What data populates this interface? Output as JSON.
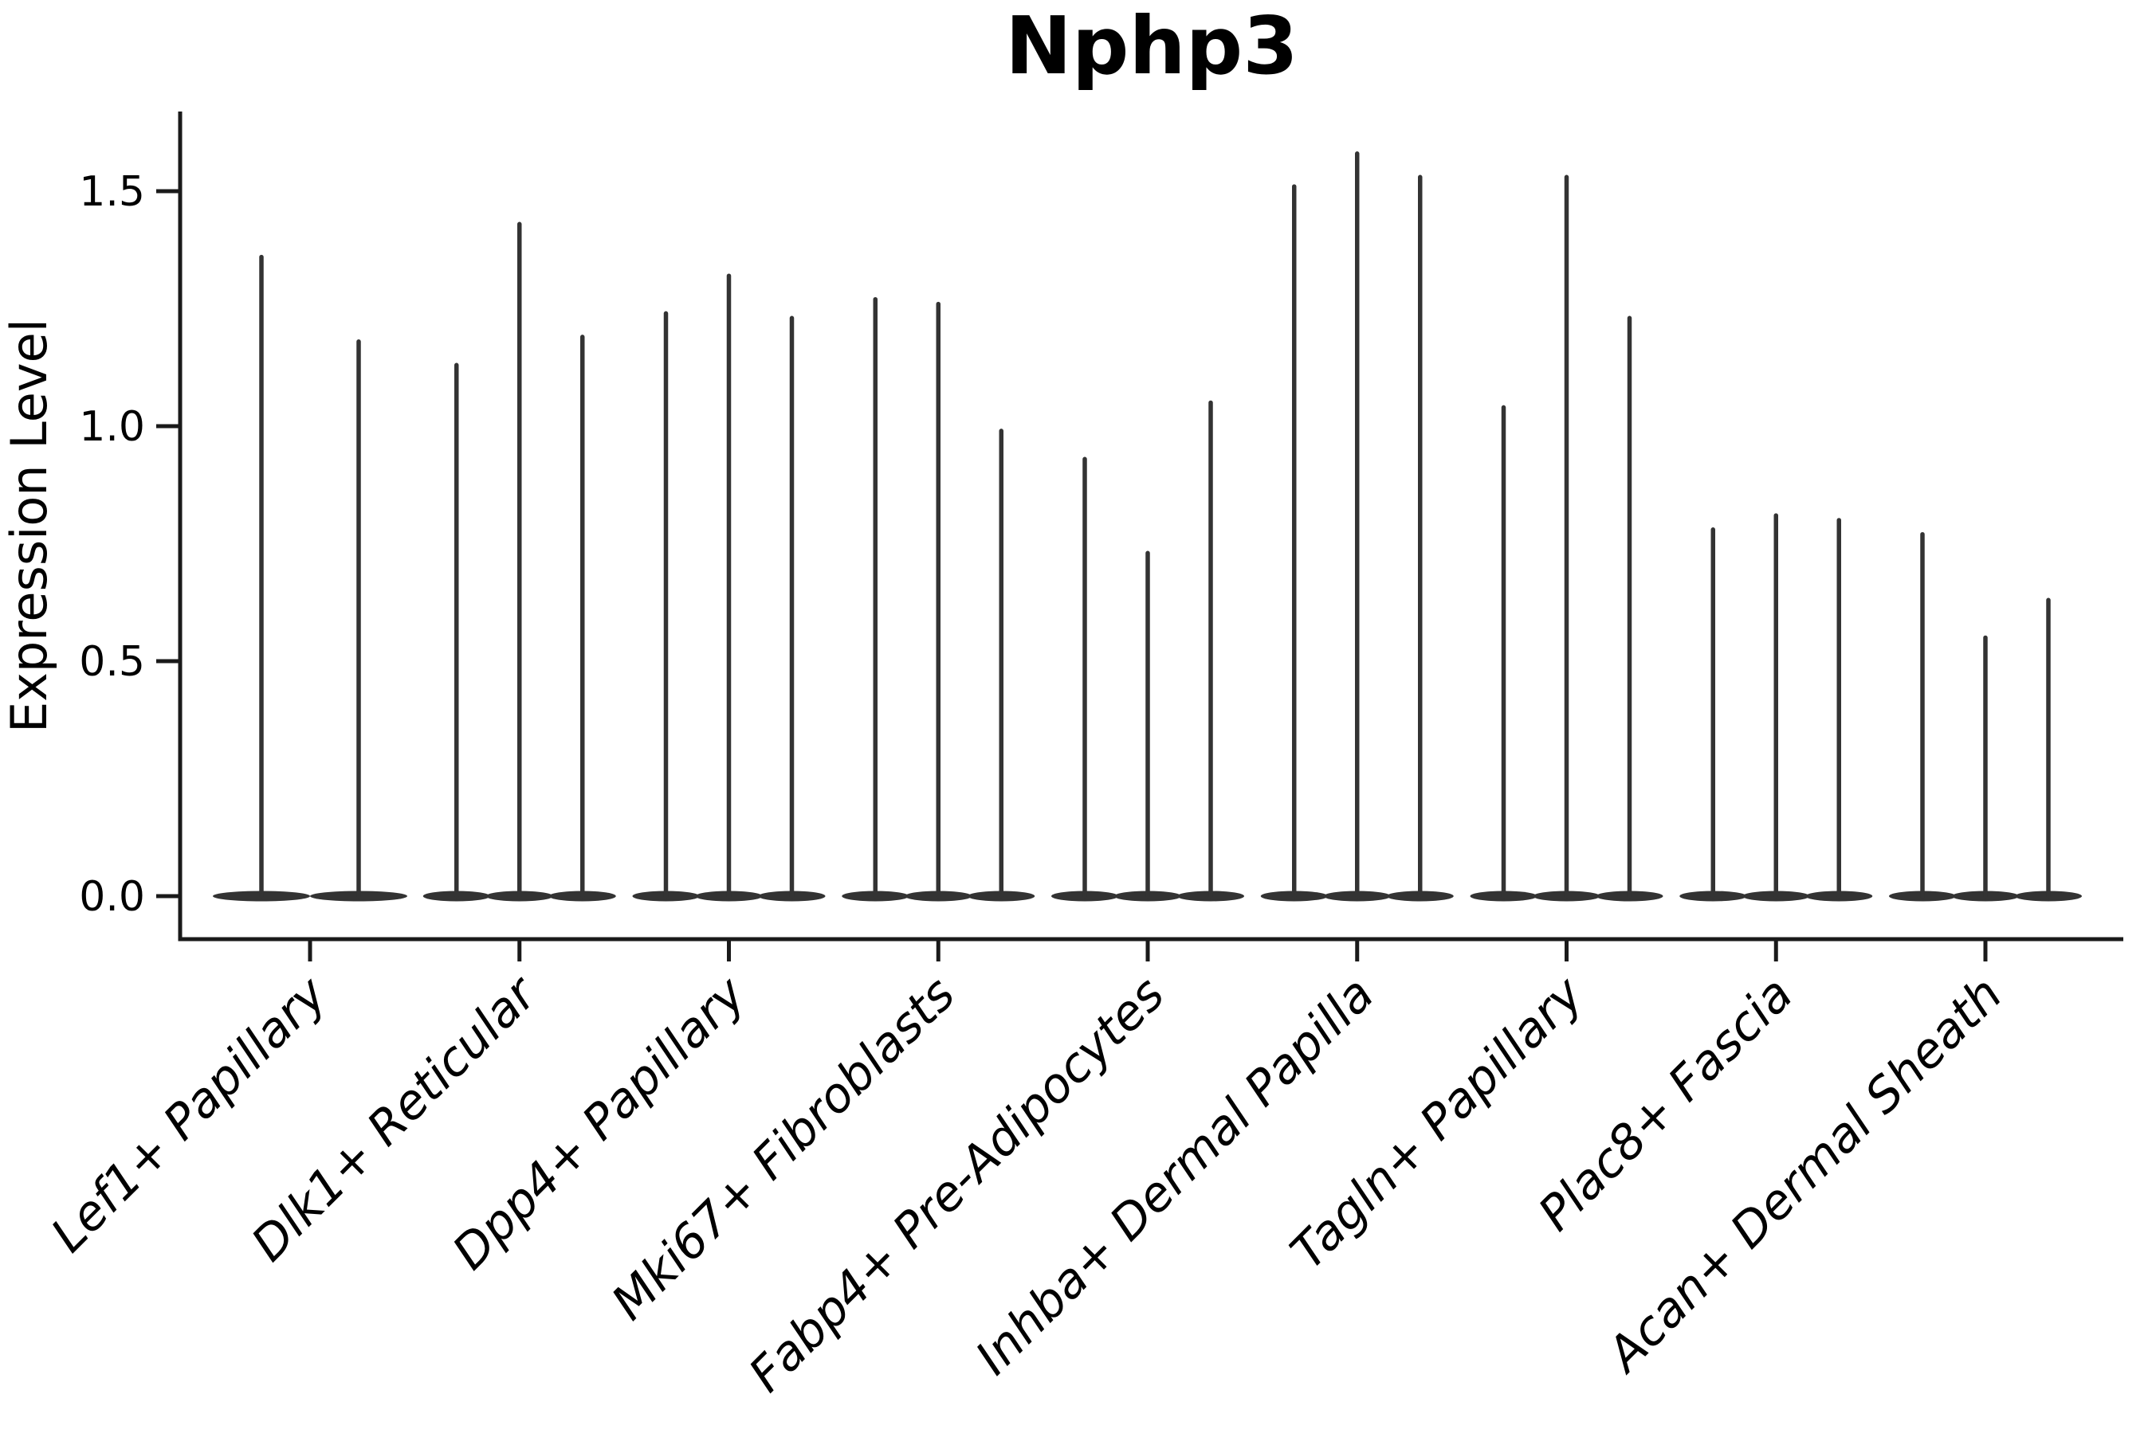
{
  "page": {
    "background_color": "#ffffff"
  },
  "chart_data": {
    "type": "violin",
    "title": "Nphp3",
    "xlabel": "",
    "ylabel": "Expression Level",
    "grid": false,
    "legend": "none",
    "ylim": [
      -0.09,
      1.76
    ],
    "ytick_labels": [
      "0.0",
      "0.5",
      "1.0",
      "1.5"
    ],
    "ytick_values": [
      0.0,
      0.5,
      1.0,
      1.5
    ],
    "categories": [
      "Lef1+ Papillary",
      "Dlk1+ Reticular",
      "Dpp4+ Papillary",
      "Mki67+ Fibroblasts",
      "Fabp4+ Pre-Adipocytes",
      "Inhba+ Dermal Papilla",
      "Tagln+ Papillary",
      "Plac8+ Fascia",
      "Acan+ Dermal Sheath"
    ],
    "groups": [
      {
        "category": "Lef1+ Papillary",
        "violin_max_values": [
          1.36,
          1.18
        ]
      },
      {
        "category": "Dlk1+ Reticular",
        "violin_max_values": [
          1.13,
          1.43,
          1.19
        ]
      },
      {
        "category": "Dpp4+ Papillary",
        "violin_max_values": [
          1.24,
          1.32,
          1.23
        ]
      },
      {
        "category": "Mki67+ Fibroblasts",
        "violin_max_values": [
          1.27,
          1.26,
          0.99
        ]
      },
      {
        "category": "Fabp4+ Pre-Adipocytes",
        "violin_max_values": [
          0.93,
          0.73,
          1.05
        ]
      },
      {
        "category": "Inhba+ Dermal Papilla",
        "violin_max_values": [
          1.51,
          1.58,
          1.53
        ]
      },
      {
        "category": "Tagln+ Papillary",
        "violin_max_values": [
          1.04,
          1.53,
          1.23
        ]
      },
      {
        "category": "Plac8+ Fascia",
        "violin_max_values": [
          0.78,
          0.81,
          0.8
        ]
      },
      {
        "category": "Acan+ Dermal Sheath",
        "violin_max_values": [
          0.77,
          0.55,
          0.63
        ]
      }
    ],
    "violin_baseline_value": 0.0,
    "colors": {
      "violin": "#333333",
      "axis": "#1a1a1a",
      "text": "#000000"
    }
  }
}
